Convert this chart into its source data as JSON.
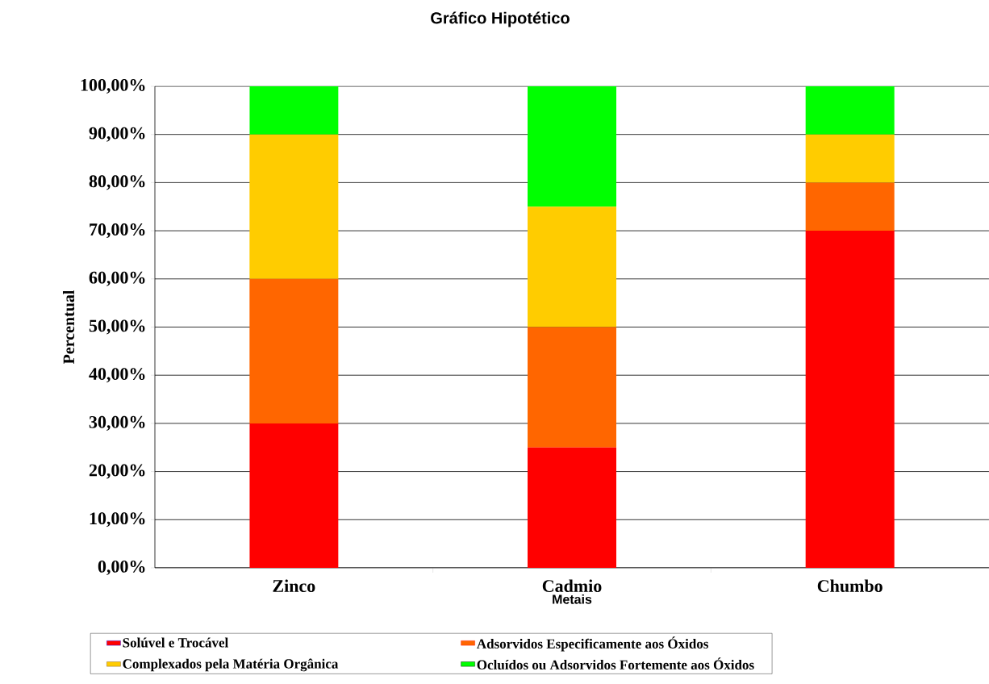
{
  "chart_data": {
    "type": "bar",
    "title": "Gráfico Hipotético",
    "xlabel": "Metais",
    "ylabel": "Percentual",
    "stacked": true,
    "grid": "y",
    "legend": "bottom",
    "categories": [
      "Zinco",
      "Cadmio",
      "Chumbo"
    ],
    "series": [
      {
        "name": "Solúvel e Trocável",
        "color": "#ff0000",
        "values": [
          30,
          25,
          70
        ]
      },
      {
        "name": "Adsorvidos Especificamente aos Óxidos",
        "color": "#ff6600",
        "values": [
          30,
          25,
          10
        ]
      },
      {
        "name": "Complexados pela Matéria Orgânica",
        "color": "#ffcc00",
        "values": [
          30,
          25,
          10
        ]
      },
      {
        "name": "Ocluídos ou Adsorvidos Fortemente aos Óxidos",
        "color": "#00ff00",
        "values": [
          10,
          25,
          10
        ]
      }
    ],
    "ylim": [
      0,
      100
    ],
    "yticks": [
      {
        "value": 0,
        "label": "0,00%"
      },
      {
        "value": 10,
        "label": "10,00%"
      },
      {
        "value": 20,
        "label": "20,00%"
      },
      {
        "value": 30,
        "label": "30,00%"
      },
      {
        "value": 40,
        "label": "40,00%"
      },
      {
        "value": 50,
        "label": "50,00%"
      },
      {
        "value": 60,
        "label": "60,00%"
      },
      {
        "value": 70,
        "label": "70,00%"
      },
      {
        "value": 80,
        "label": "80,00%"
      },
      {
        "value": 90,
        "label": "90,00%"
      },
      {
        "value": 100,
        "label": "100,00%"
      }
    ]
  }
}
